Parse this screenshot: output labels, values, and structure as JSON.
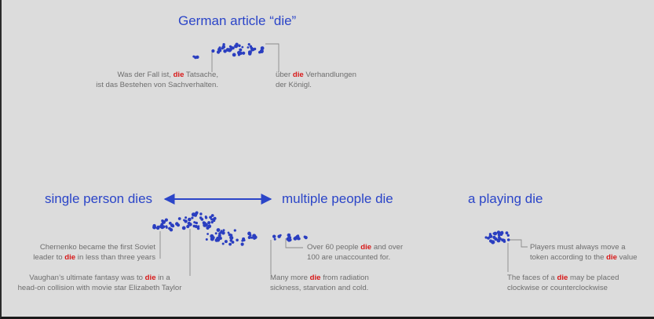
{
  "colors": {
    "background": "#dcdcdc",
    "heading": "#2b45c8",
    "highlight": "#d81818",
    "note_text": "#6e6e6e",
    "dot": "#2a3ec0",
    "leader_line": "#8a8a8a"
  },
  "headings": {
    "german": "German article “die”",
    "single": "single person dies",
    "multiple": "multiple people die",
    "playing": "a playing die"
  },
  "notes": {
    "german_left": {
      "l1_pre": "Was der Fall ist, ",
      "l1_hl": "die",
      "l1_post": " Tatsache,",
      "l2": "ist das Bestehen von Sachverhalten."
    },
    "german_right": {
      "l1_pre": "über ",
      "l1_hl": "die",
      "l1_post": " Verhandlungen",
      "l2": "der Königl."
    },
    "chernenko": {
      "l1": "Chernenko became the first Soviet",
      "l2_pre": "leader to ",
      "l2_hl": "die",
      "l2_post": " in less than three years"
    },
    "vaughan": {
      "l1_pre": "Vaughan’s ultimate fantasy was to ",
      "l1_hl": "die",
      "l1_post": " in a",
      "l2": "head-on collision with movie star Elizabeth Taylor"
    },
    "over60": {
      "l1_pre": "Over 60 people ",
      "l1_hl": "die",
      "l1_post": " and over",
      "l2": "100 are unaccounted for."
    },
    "manymore": {
      "l1_pre": "Many more ",
      "l1_hl": "die",
      "l1_post": " from radiation",
      "l2": "sickness, starvation and cold."
    },
    "players": {
      "l1": "Players must always move a",
      "l2_pre": "token according to the ",
      "l2_hl": "die",
      "l2_post": " value"
    },
    "faces": {
      "l1_pre": "The faces of a ",
      "l1_hl": "die",
      "l1_post": " may be placed",
      "l2": "clockwise or counterclockwise"
    }
  }
}
